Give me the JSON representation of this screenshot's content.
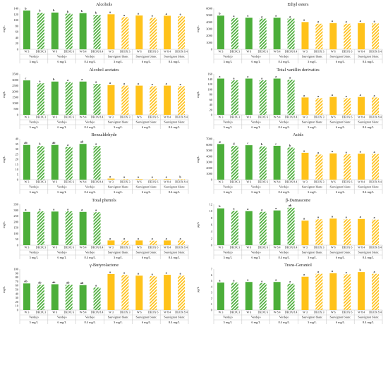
{
  "figure": {
    "x_groups": [
      {
        "wine": "Verdejo",
        "dose": "3 mg/L",
        "treatments": [
          "W 3",
          "DEOX 3"
        ]
      },
      {
        "wine": "Verdejo",
        "dose": "6 mg/L",
        "treatments": [
          "W 6",
          "DEOX 6"
        ]
      },
      {
        "wine": "Verdejo",
        "dose": "8.4 mg/L",
        "treatments": [
          "W 8.4",
          "DEOX 8.4"
        ]
      },
      {
        "wine": "Sauvignon blanc",
        "dose": "3 mg/L",
        "treatments": [
          "W 3",
          "DEOX 3"
        ]
      },
      {
        "wine": "Sauvignon blanc",
        "dose": "6 mg/L",
        "treatments": [
          "W 6",
          "DEOX 6"
        ]
      },
      {
        "wine": "Sauvignon blanc",
        "dose": "8.4 mg/L",
        "treatments": [
          "W 8.4",
          "DEOX 8.4"
        ]
      }
    ],
    "colors": {
      "verdejo": "#4cae3a",
      "sauvignon": "#ffc21a",
      "axis": "#bfbfbf",
      "text": "#222222"
    }
  },
  "chart_data": [
    {
      "type": "bar",
      "title": "Alcohols",
      "ylabel": "mg/L",
      "ylim": [
        0,
        140
      ],
      "yticks": [
        0,
        20,
        40,
        60,
        80,
        100,
        120,
        140
      ],
      "values": [
        133,
        125,
        126,
        122,
        124,
        118,
        120,
        110,
        116,
        108,
        115,
        113
      ],
      "letters": [
        "b",
        "b",
        "b",
        "b",
        "b",
        "b",
        "a",
        "a",
        "a",
        "a",
        "a",
        "a"
      ]
    },
    {
      "type": "bar",
      "title": "Ethyl esters",
      "ylabel": "mg/L",
      "ylim": [
        0,
        6000
      ],
      "yticks": [
        0,
        1000,
        2000,
        3000,
        4000,
        5000,
        6000
      ],
      "values": [
        4950,
        4600,
        4650,
        4500,
        4650,
        4500,
        4000,
        3750,
        3850,
        3750,
        3850,
        3800
      ],
      "letters": [
        "b",
        "a",
        "a",
        "a",
        "a",
        "a",
        "a",
        "a",
        "a",
        "a",
        "a",
        "a"
      ]
    },
    {
      "type": "bar",
      "title": "Alcohol acetates",
      "ylabel": "mg/L",
      "ylim": [
        0,
        3500
      ],
      "yticks": [
        0,
        500,
        1000,
        1500,
        2000,
        2500,
        3000,
        3500
      ],
      "values": [
        2950,
        2700,
        2850,
        2800,
        2850,
        2650,
        2550,
        2500,
        2500,
        2450,
        2500,
        2450
      ],
      "letters": [
        "c",
        "a",
        "b",
        "a",
        "a",
        "a",
        "a",
        "a",
        "a",
        "a",
        "a",
        "a"
      ]
    },
    {
      "type": "bar",
      "title": "Total vanillin derivaties",
      "ylabel": "mg/L",
      "ylim": [
        0,
        160
      ],
      "yticks": [
        0,
        20,
        40,
        60,
        80,
        100,
        120,
        140,
        160
      ],
      "values": [
        142,
        135,
        142,
        135,
        142,
        137,
        68,
        65,
        70,
        65,
        70,
        68
      ],
      "letters": [
        "a",
        "a",
        "a",
        "a",
        "a",
        "a",
        "a",
        "a",
        "a",
        "a",
        "a",
        "a"
      ]
    },
    {
      "type": "bar",
      "title": "Benzaldehyde",
      "ylabel": "mg/L",
      "ylim": [
        0,
        40
      ],
      "yticks": [
        0,
        5,
        10,
        15,
        20,
        25,
        30,
        35,
        40
      ],
      "values": [
        34,
        33,
        34,
        32,
        35,
        33,
        1,
        0.5,
        0.5,
        0.5,
        0.5,
        0.5
      ],
      "letters": [
        "ab",
        "b",
        "ab",
        "a",
        "ab",
        "a",
        "a",
        "a",
        "a",
        "a",
        "a",
        "b"
      ]
    },
    {
      "type": "bar",
      "title": "Acids",
      "ylabel": "mg/L",
      "ylim": [
        0,
        7000
      ],
      "yticks": [
        0,
        1000,
        2000,
        3000,
        4000,
        5000,
        6000,
        7000
      ],
      "values": [
        6100,
        5800,
        5900,
        5700,
        5800,
        5500,
        4600,
        4300,
        4500,
        4350,
        4450,
        4400
      ],
      "letters": [
        "d",
        "d",
        "c",
        "b",
        "c",
        "b",
        "a",
        "a",
        "a",
        "a",
        "a",
        "a"
      ]
    },
    {
      "type": "bar",
      "title": "Total phenols",
      "ylabel": "mg/L",
      "ylim": [
        0,
        350
      ],
      "yticks": [
        0,
        50,
        100,
        150,
        200,
        250,
        300,
        350
      ],
      "values": [
        285,
        290,
        288,
        290,
        285,
        282,
        40,
        38,
        40,
        38,
        40,
        40
      ],
      "letters": [
        "a",
        "a",
        "a",
        "a",
        "a",
        "a",
        "a",
        "a",
        "a",
        "a",
        "a",
        "a"
      ]
    },
    {
      "type": "bar",
      "title": "β-Damascone",
      "ylabel": "µg/L",
      "ylim": [
        0,
        12
      ],
      "yticks": [
        0,
        2,
        4,
        6,
        8,
        10,
        12
      ],
      "values": [
        10.8,
        10.1,
        10.0,
        9.8,
        10.2,
        11.0,
        7.2,
        7.6,
        7.8,
        7.6,
        7.7,
        7.5
      ],
      "letters": [
        "b",
        "a",
        "a",
        "a",
        "a",
        "ab",
        "a",
        "a",
        "a",
        "a",
        "a",
        "a"
      ]
    },
    {
      "type": "bar",
      "title": "γ-Butyrolactone",
      "ylabel": "mg/L",
      "ylim": [
        0,
        100
      ],
      "yticks": [
        0,
        10,
        20,
        30,
        40,
        50,
        60,
        70,
        80,
        90,
        100
      ],
      "values": [
        65,
        62,
        63,
        62,
        61,
        55,
        88,
        86,
        84,
        83,
        86,
        84
      ],
      "letters": [
        "ab",
        "ab",
        "ab",
        "ab",
        "ab",
        "a",
        "a",
        "a",
        "a",
        "a",
        "a",
        "a"
      ]
    },
    {
      "type": "bar",
      "title": "Trans-Geraniol",
      "ylabel": "µg/L",
      "ylim": [
        0,
        7
      ],
      "yticks": [
        0,
        1,
        2,
        3,
        4,
        5,
        6,
        7
      ],
      "values": [
        4.7,
        4.7,
        4.8,
        4.6,
        4.8,
        4.5,
        5.7,
        6.2,
        6.3,
        6.1,
        6.5,
        6.2
      ],
      "letters": [
        "a",
        "a",
        "a",
        "a",
        "a",
        "a",
        "a",
        "a",
        "a",
        "a",
        "b",
        "a"
      ]
    }
  ]
}
